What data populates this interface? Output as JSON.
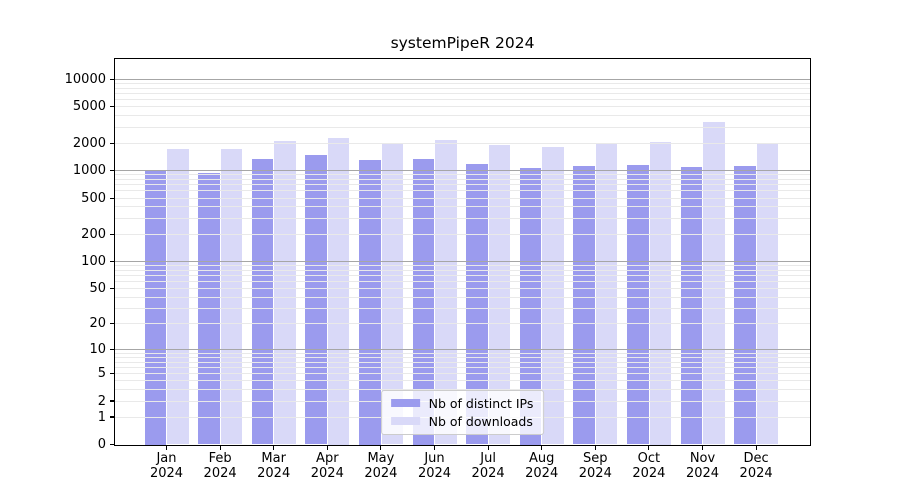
{
  "chart_data": {
    "type": "bar",
    "title": "systemPipeR 2024",
    "categories": [
      "Jan",
      "Feb",
      "Mar",
      "Apr",
      "May",
      "Jun",
      "Jul",
      "Aug",
      "Sep",
      "Oct",
      "Nov",
      "Dec"
    ],
    "category_year": "2024",
    "series": [
      {
        "name": "Nb of distinct IPs",
        "color": "#9b9bee",
        "values": [
          1030,
          940,
          1350,
          1490,
          1310,
          1360,
          1190,
          1070,
          1130,
          1160,
          1090,
          1130
        ]
      },
      {
        "name": "Nb of downloads",
        "color": "#d9d9f8",
        "values": [
          1740,
          1740,
          2100,
          2280,
          2020,
          2180,
          1900,
          1800,
          2030,
          2060,
          3400,
          1970
        ]
      }
    ],
    "yscale": "log10(value+1)",
    "ylim": [
      0,
      16750
    ],
    "yticks": [
      0,
      1,
      2,
      5,
      10,
      20,
      50,
      100,
      200,
      500,
      1000,
      2000,
      5000,
      10000
    ],
    "grid": true,
    "grid_minor_color": "#e9e9e9",
    "grid_major_color": "#a6a6a6",
    "legend_position": "lower center"
  }
}
